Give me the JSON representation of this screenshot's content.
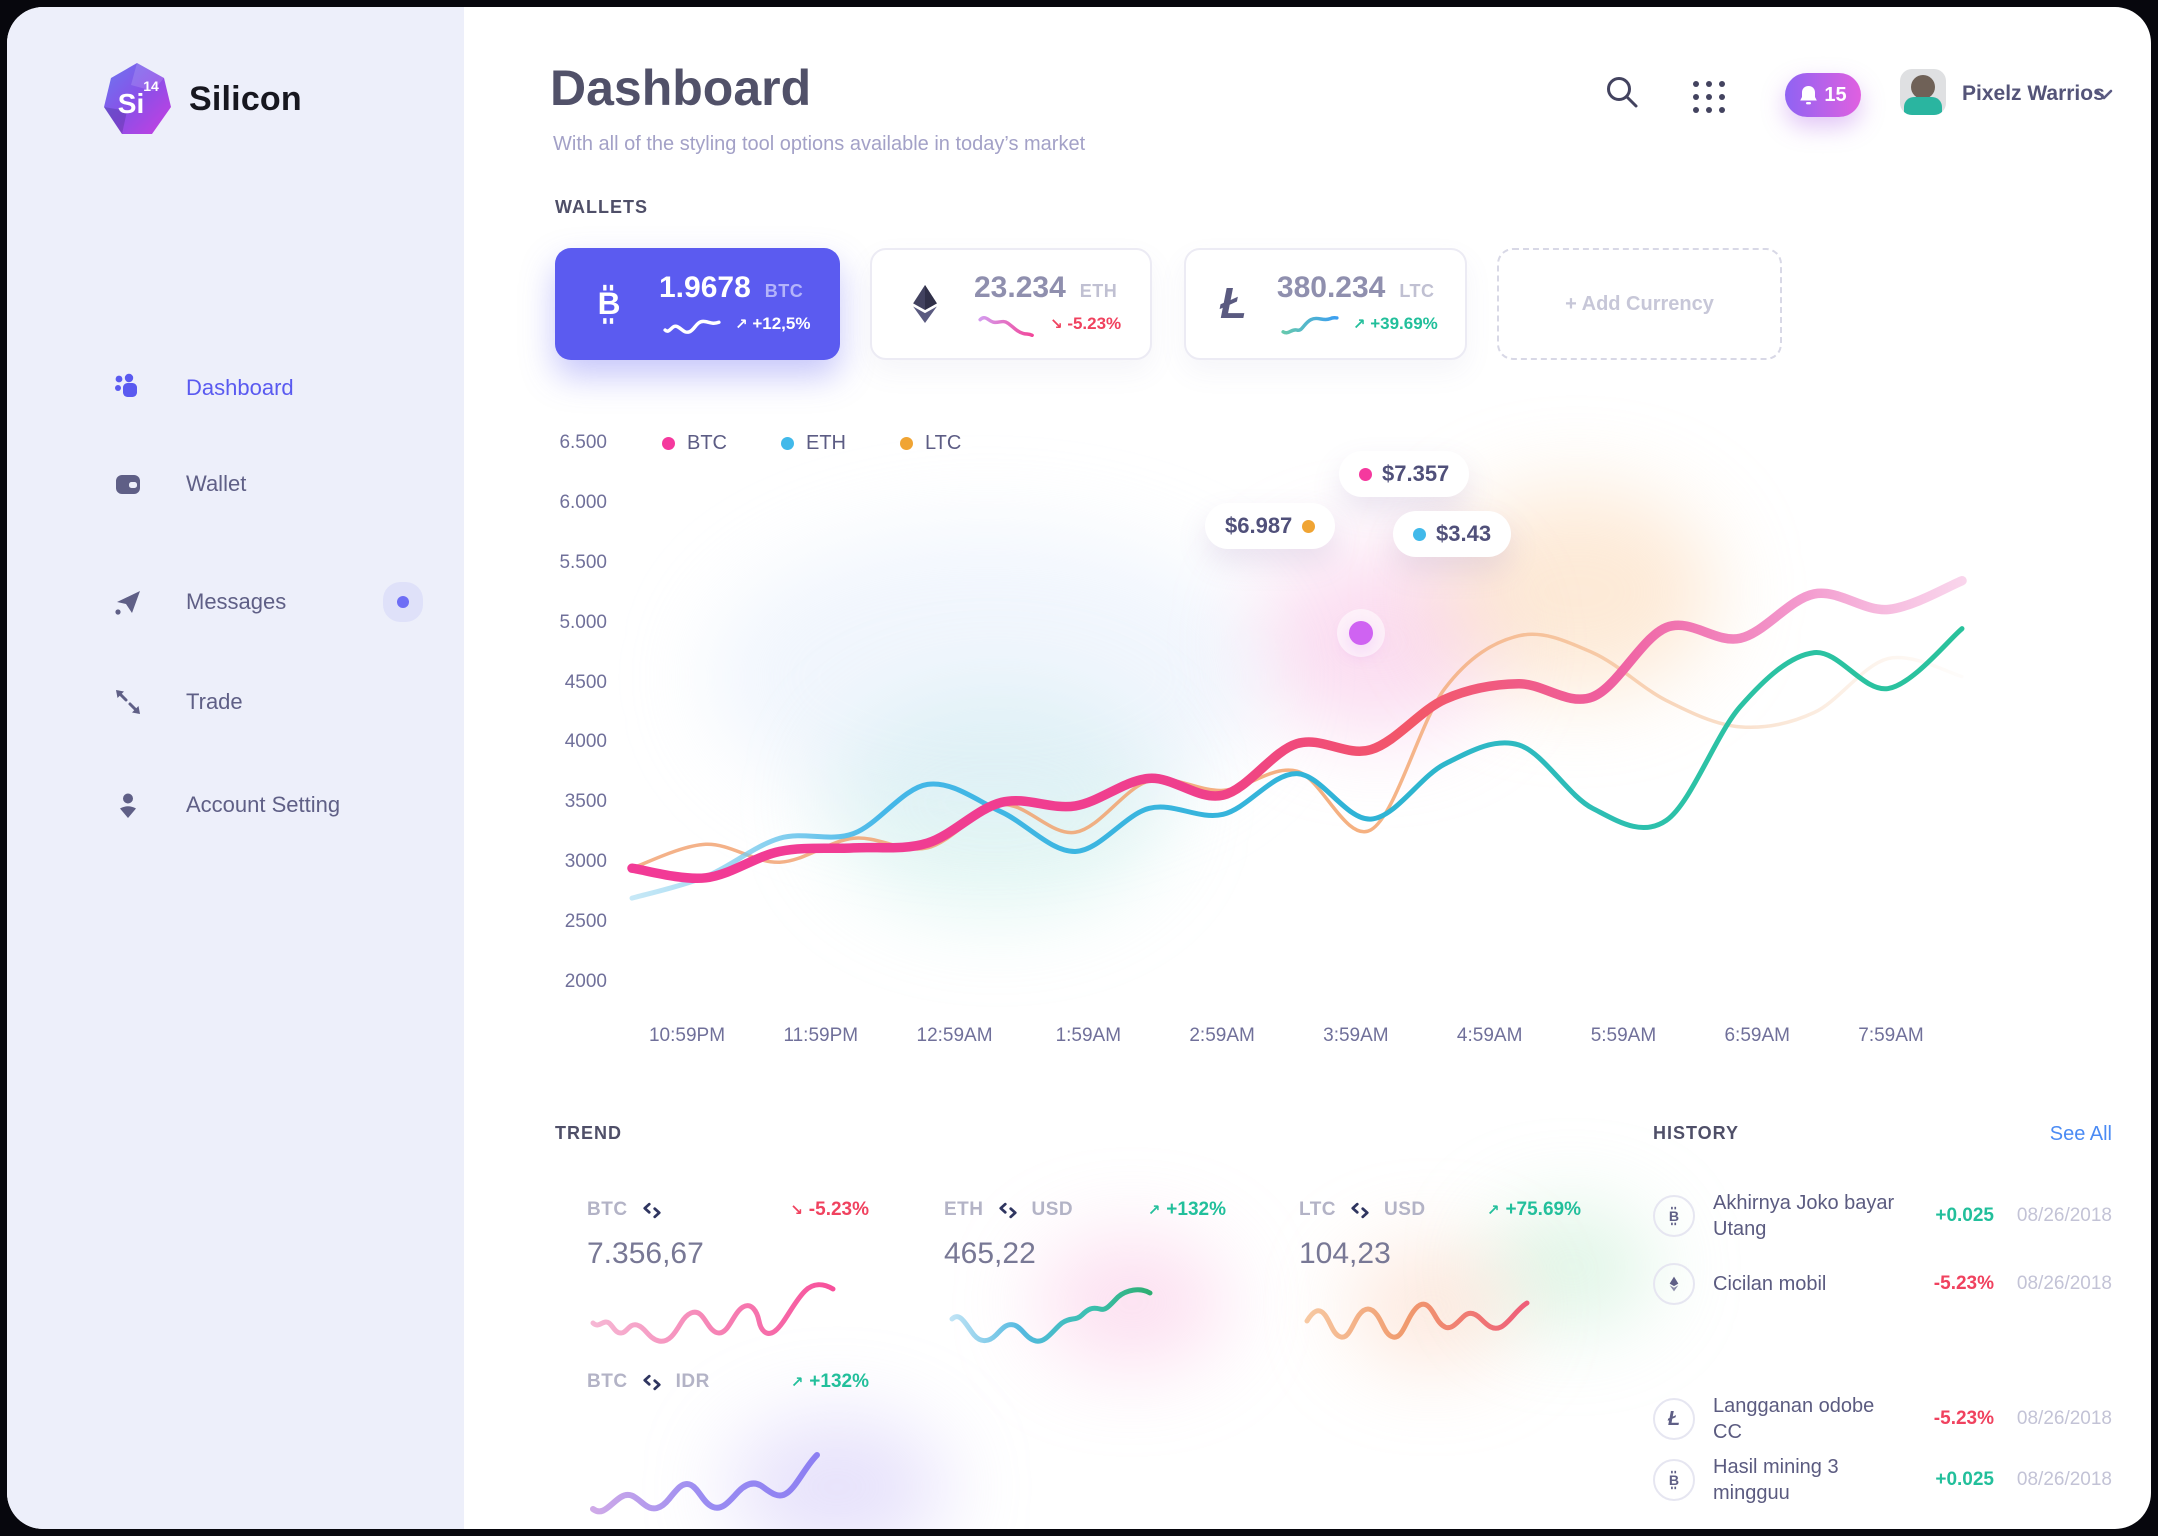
{
  "app": {
    "brand": "Silicon",
    "brand_badge": "Si",
    "brand_badge_sup": "14"
  },
  "sidebar": {
    "items": [
      {
        "label": "Dashboard",
        "active": true
      },
      {
        "label": "Wallet",
        "active": false
      },
      {
        "label": "Messages",
        "active": false,
        "has_notification_dot": true
      },
      {
        "label": "Trade",
        "active": false
      },
      {
        "label": "Account Setting",
        "active": false
      }
    ]
  },
  "header": {
    "title": "Dashboard",
    "subtitle": "With all of the styling tool options available in today’s market",
    "notification_count": "15",
    "user_name": "Pixelz Warrios"
  },
  "wallets": {
    "section_label": "WALLETS",
    "cards": [
      {
        "currency": "BTC",
        "amount": "1.9678",
        "arrow": "↗",
        "change": "+12,5%",
        "direction": "up",
        "highlight": true
      },
      {
        "currency": "ETH",
        "amount": "23.234",
        "arrow": "↘",
        "change": "-5.23%",
        "direction": "down",
        "highlight": false
      },
      {
        "currency": "LTC",
        "amount": "380.234",
        "arrow": "↗",
        "change": "+39.69%",
        "direction": "up",
        "highlight": false
      }
    ],
    "add_label": "+ Add Currency"
  },
  "chart_data": {
    "type": "line",
    "x_labels": [
      "10:59PM",
      "11:59PM",
      "12:59AM",
      "1:59AM",
      "2:59AM",
      "3:59AM",
      "4:59AM",
      "5:59AM",
      "6:59AM",
      "7:59AM"
    ],
    "y_ticks": [
      "6.500",
      "6.000",
      "5.500",
      "5.000",
      "4500",
      "4000",
      "3500",
      "3000",
      "2500",
      "2000"
    ],
    "y_range": [
      2000,
      6500
    ],
    "grid": false,
    "legend_position": "top",
    "series": [
      {
        "name": "BTC",
        "color": "#f5399e",
        "values": [
          2950,
          2870,
          3090,
          3120,
          3160,
          3500,
          3470,
          3700,
          3560,
          3990,
          3940,
          4360,
          4490,
          4380,
          4960,
          4870,
          5240,
          5110,
          5350
        ]
      },
      {
        "name": "ETH",
        "color": "#41b9ea",
        "values": [
          2700,
          2880,
          3200,
          3240,
          3650,
          3420,
          3090,
          3450,
          3400,
          3740,
          3360,
          3820,
          3980,
          3450,
          3350,
          4300,
          4750,
          4450,
          4950
        ]
      },
      {
        "name": "LTC",
        "color": "#f0a433",
        "values": [
          2950,
          3150,
          3000,
          3200,
          3120,
          3480,
          3250,
          3680,
          3600,
          3760,
          3270,
          4450,
          4890,
          4750,
          4350,
          4130,
          4250,
          4700,
          4550
        ]
      }
    ],
    "tooltips": [
      {
        "label": "$7.357",
        "series": "BTC"
      },
      {
        "label": "$6.987",
        "series": "LTC"
      },
      {
        "label": "$3.43",
        "series": "ETH"
      }
    ]
  },
  "trend": {
    "section_label": "TREND",
    "cards": [
      {
        "base": "BTC",
        "quote": "",
        "arrow": "↘",
        "change": "-5.23%",
        "direction": "down",
        "value": "7.356,67"
      },
      {
        "base": "ETH",
        "quote": "USD",
        "arrow": "↗",
        "change": "+132%",
        "direction": "up",
        "value": "465,22"
      },
      {
        "base": "LTC",
        "quote": "USD",
        "arrow": "↗",
        "change": "+75.69%",
        "direction": "up",
        "value": "104,23"
      },
      {
        "base": "BTC",
        "quote": "IDR",
        "arrow": "↗",
        "change": "+132%",
        "direction": "up",
        "value": ""
      }
    ]
  },
  "history": {
    "section_label": "HISTORY",
    "see_all": "See All",
    "rows": [
      {
        "currency": "BTC",
        "title": "Akhirnya Joko bayar Utang",
        "amount": "+0.025",
        "positive": true,
        "date": "08/26/2018"
      },
      {
        "currency": "ETH",
        "title": "Cicilan mobil",
        "amount": "-5.23%",
        "positive": false,
        "date": "08/26/2018"
      },
      {
        "currency": "LTC",
        "title": "Langganan odobe CC",
        "amount": "-5.23%",
        "positive": false,
        "date": "08/26/2018"
      },
      {
        "currency": "BTC",
        "title": "Hasil mining 3 mingguu",
        "amount": "+0.025",
        "positive": true,
        "date": "08/26/2018"
      }
    ]
  },
  "colors": {
    "primary": "#5b5bf0",
    "pink": "#f5399e",
    "blue": "#41b9ea",
    "orange": "#f0a433",
    "green": "#22bf9b",
    "red": "#f0425f",
    "link": "#4b8bf4",
    "sidebar_bg": "#edeffa",
    "notification_gradient": [
      "#8f63f3",
      "#e060e0"
    ]
  }
}
